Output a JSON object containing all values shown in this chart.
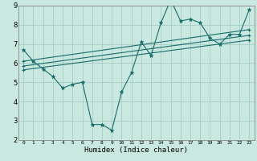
{
  "title": "",
  "xlabel": "Humidex (Indice chaleur)",
  "xlim": [
    -0.5,
    23.5
  ],
  "ylim": [
    2,
    9
  ],
  "yticks": [
    2,
    3,
    4,
    5,
    6,
    7,
    8,
    9
  ],
  "xticks": [
    0,
    1,
    2,
    3,
    4,
    5,
    6,
    7,
    8,
    9,
    10,
    11,
    12,
    13,
    14,
    15,
    16,
    17,
    18,
    19,
    20,
    21,
    22,
    23
  ],
  "background_color": "#c8e8e0",
  "grid_color": "#a0c8c0",
  "line_color": "#1a6b6b",
  "series": [
    [
      0,
      6.7
    ],
    [
      1,
      6.1
    ],
    [
      2,
      5.7
    ],
    [
      3,
      5.3
    ],
    [
      4,
      4.7
    ],
    [
      5,
      4.9
    ],
    [
      6,
      5.0
    ],
    [
      7,
      2.8
    ],
    [
      8,
      2.8
    ],
    [
      9,
      2.5
    ],
    [
      10,
      4.5
    ],
    [
      11,
      5.5
    ],
    [
      12,
      7.1
    ],
    [
      13,
      6.4
    ],
    [
      14,
      8.1
    ],
    [
      15,
      9.3
    ],
    [
      16,
      8.2
    ],
    [
      17,
      8.3
    ],
    [
      18,
      8.1
    ],
    [
      19,
      7.3
    ],
    [
      20,
      7.0
    ],
    [
      21,
      7.5
    ],
    [
      22,
      7.5
    ],
    [
      23,
      8.8
    ]
  ],
  "linear1": [
    [
      0,
      6.1
    ],
    [
      23,
      7.75
    ]
  ],
  "linear2": [
    [
      0,
      5.85
    ],
    [
      23,
      7.45
    ]
  ],
  "linear3": [
    [
      0,
      5.65
    ],
    [
      23,
      7.2
    ]
  ]
}
